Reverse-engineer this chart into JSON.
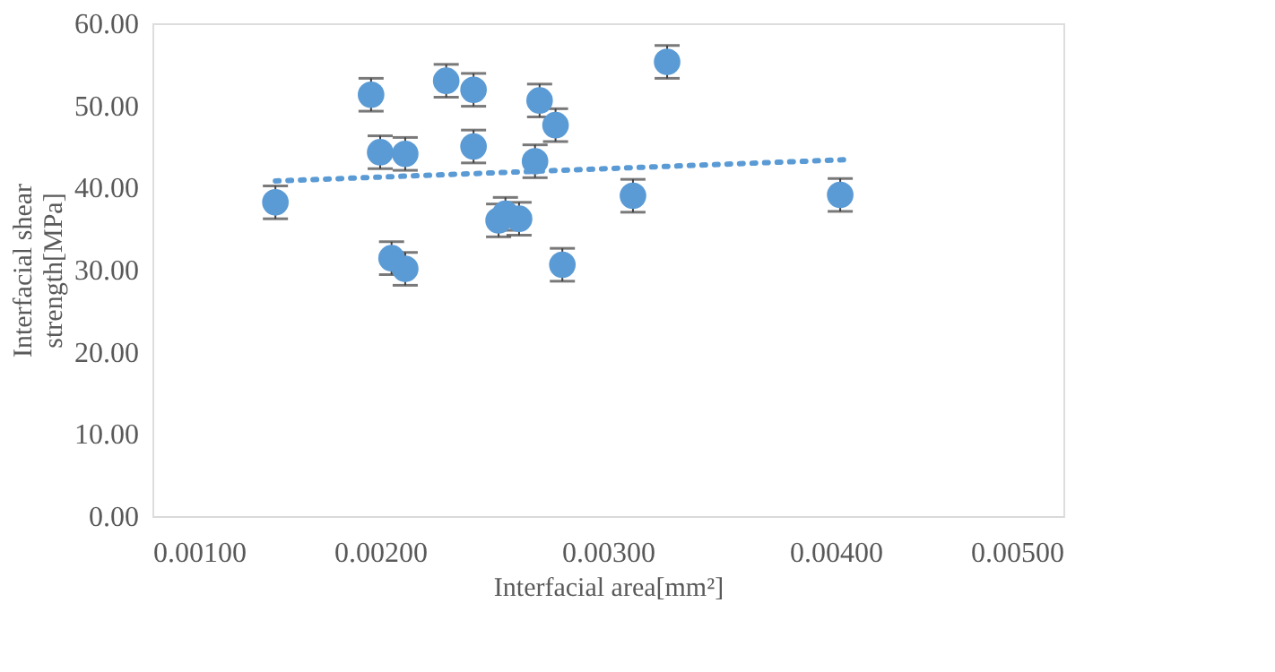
{
  "chart_data": {
    "type": "scatter",
    "xlabel": "Interfacial area[mm²]",
    "ylabel": "Interfacial shear strength[MPa]",
    "xlim": [
      0.001,
      0.005
    ],
    "xticks": [
      {
        "value": 0.001,
        "label": "0.00100"
      },
      {
        "value": 0.002,
        "label": "0.00200"
      },
      {
        "value": 0.003,
        "label": "0.00300"
      },
      {
        "value": 0.004,
        "label": "0.00400"
      },
      {
        "value": 0.005,
        "label": "0.00500"
      }
    ],
    "ylim": [
      0,
      60
    ],
    "yticks": [
      {
        "value": 0,
        "label": "0.00"
      },
      {
        "value": 10,
        "label": "10.00"
      },
      {
        "value": 20,
        "label": "20.00"
      },
      {
        "value": 30,
        "label": "30.00"
      },
      {
        "value": 40,
        "label": "40.00"
      },
      {
        "value": 50,
        "label": "50.00"
      },
      {
        "value": 60,
        "label": "60.00"
      }
    ],
    "grid": false,
    "series": [
      {
        "type": "scatter",
        "color": "#5b9bd5",
        "marker": "circle",
        "x": [
          0.00154,
          0.00196,
          0.002,
          0.00211,
          0.00205,
          0.00211,
          0.00229,
          0.00241,
          0.00241,
          0.00252,
          0.00255,
          0.00261,
          0.00268,
          0.0027,
          0.00277,
          0.0028,
          0.00311,
          0.00326,
          0.00402
        ],
        "values": [
          38.2,
          51.3,
          44.3,
          44.1,
          31.4,
          30.1,
          53.0,
          51.9,
          45.0,
          36.0,
          36.8,
          36.2,
          43.2,
          50.6,
          47.6,
          30.6,
          39.0,
          55.3,
          39.1
        ],
        "errors": [
          2,
          2,
          2,
          2,
          2,
          2,
          2,
          2,
          2,
          2,
          2,
          2,
          2,
          2,
          2,
          2,
          2,
          2,
          2
        ]
      },
      {
        "type": "line",
        "color": "#5b9bd5",
        "line_style": "dotted",
        "x": [
          0.00154,
          0.00405
        ],
        "values": [
          40.8,
          43.4
        ]
      }
    ]
  }
}
